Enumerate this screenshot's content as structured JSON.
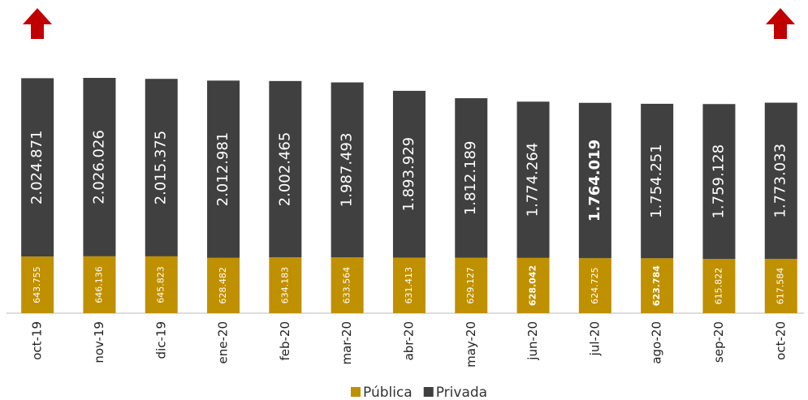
{
  "chart_data": {
    "type": "bar",
    "stacked": true,
    "categories": [
      "oct-19",
      "nov-19",
      "dic-19",
      "ene-20",
      "feb-20",
      "mar-20",
      "abr-20",
      "may-20",
      "jun-20",
      "jul-20",
      "ago-20",
      "sep-20",
      "oct-20"
    ],
    "series": [
      {
        "name": "Pública",
        "color": "#bf9000",
        "values": [
          643755,
          646136,
          645823,
          628482,
          634183,
          633564,
          631413,
          629127,
          628042,
          624725,
          623784,
          615822,
          617584
        ],
        "value_labels": [
          "643.755",
          "646.136",
          "645.823",
          "628.482",
          "634.183",
          "633.564",
          "631.413",
          "629.127",
          "628.042",
          "624.725",
          "623.784",
          "615.822",
          "617.584"
        ]
      },
      {
        "name": "Privada",
        "color": "#404040",
        "values": [
          2024871,
          2026026,
          2015375,
          2012981,
          2002465,
          1987493,
          1893929,
          1812189,
          1774264,
          1764019,
          1754251,
          1759128,
          1773033
        ],
        "value_labels": [
          "2.024.871",
          "2.026.026",
          "2.015.375",
          "2.012.981",
          "2.002.465",
          "1.987.493",
          "1.893.929",
          "1.812.189",
          "1.774.264",
          "1.764.019",
          "1.754.251",
          "1.759.128",
          "1.773.033"
        ]
      }
    ]
  }
}
